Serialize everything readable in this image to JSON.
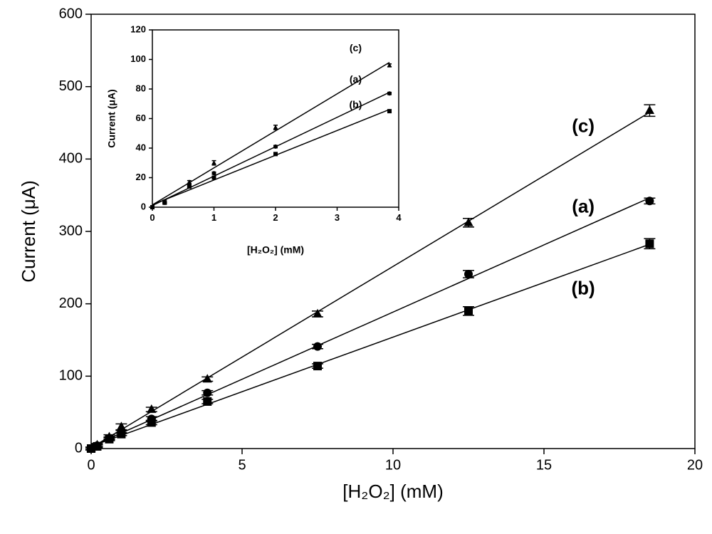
{
  "chart_data": [
    {
      "type": "scatter",
      "xlabel": "[H₂O₂] (mM)",
      "ylabel": "Current (μA)",
      "xlim": [
        0,
        20
      ],
      "xticks": [
        0,
        5,
        10,
        15,
        20
      ],
      "ylim": [
        0,
        600
      ],
      "yticks": [
        0,
        100,
        200,
        300,
        400,
        500,
        600
      ],
      "x": [
        0,
        0.2,
        0.6,
        1.0,
        2.0,
        3.85,
        7.5,
        12.5,
        18.5
      ],
      "color": "#000000",
      "series": [
        {
          "name": "(a)",
          "marker": "circle",
          "values": [
            0,
            4,
            14,
            23,
            41,
            77,
            141,
            241,
            342
          ],
          "errors": [
            2,
            2,
            2,
            2,
            3,
            3,
            3,
            5,
            4
          ]
        },
        {
          "name": "(b)",
          "marker": "square",
          "values": [
            0,
            3,
            13,
            20,
            36,
            65,
            114,
            190,
            283
          ],
          "errors": [
            2,
            2,
            2,
            2,
            3,
            3,
            3,
            6,
            7
          ]
        },
        {
          "name": "(c)",
          "marker": "triangle",
          "values": [
            0,
            5,
            16,
            30,
            54,
            96,
            186,
            312,
            467
          ],
          "errors": [
            2,
            2,
            3,
            4,
            3,
            3,
            4,
            6,
            8
          ]
        }
      ]
    },
    {
      "type": "scatter",
      "xlabel": "[H₂O₂] (mM)",
      "ylabel": "Current (μA)",
      "xlim": [
        0,
        4
      ],
      "xticks": [
        0,
        1,
        2,
        3,
        4
      ],
      "ylim": [
        0,
        120
      ],
      "yticks": [
        0,
        20,
        40,
        60,
        80,
        100,
        120
      ],
      "x": [
        0,
        0.2,
        0.6,
        1.0,
        2.0,
        3.85
      ],
      "color": "#000000",
      "series": [
        {
          "name": "(a)",
          "marker": "circle",
          "values": [
            0,
            3,
            15,
            23,
            41,
            77
          ],
          "errors": [
            0.5,
            0.5,
            0.8,
            0.8,
            0.8,
            0.8
          ]
        },
        {
          "name": "(b)",
          "marker": "square",
          "values": [
            0,
            3,
            14,
            20,
            36,
            65
          ],
          "errors": [
            0.5,
            0.5,
            0.8,
            0.8,
            1,
            0.8
          ]
        },
        {
          "name": "(c)",
          "marker": "triangle",
          "values": [
            0,
            4,
            17,
            30,
            54,
            96
          ],
          "errors": [
            0.5,
            0.8,
            1,
            1.5,
            1.5,
            1
          ]
        }
      ]
    }
  ]
}
